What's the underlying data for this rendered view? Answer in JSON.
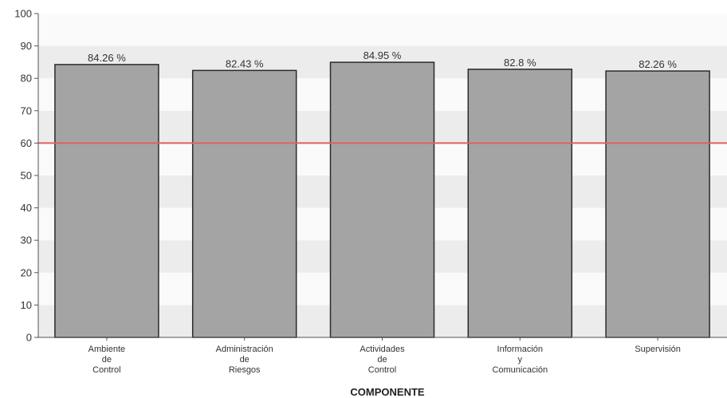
{
  "chart_data": {
    "type": "bar",
    "categories": [
      [
        "Ambiente",
        "de",
        "Control"
      ],
      [
        "Administración",
        "de",
        "Riesgos"
      ],
      [
        "Actividades",
        "de",
        "Control"
      ],
      [
        "Información",
        "y",
        "Comunicación"
      ],
      [
        "Supervisión"
      ]
    ],
    "values": [
      84.26,
      82.43,
      84.95,
      82.8,
      82.26
    ],
    "data_labels": [
      "84.26 %",
      "82.43 %",
      "84.95 %",
      "82.8 %",
      "82.26 %"
    ],
    "xlabel": "COMPONENTE",
    "ylabel": "",
    "ylim": [
      0,
      100
    ],
    "yticks": [
      0,
      10,
      20,
      30,
      40,
      50,
      60,
      70,
      80,
      90,
      100
    ],
    "reference_line": 60,
    "grid": "horizontal alternating bands",
    "colors": {
      "bar_fill": "#a4a4a4",
      "bar_stroke": "#2a2a2a",
      "reference_line": "#e06060",
      "band_dark": "#ececec",
      "band_light": "#fafafa",
      "axis": "#555555"
    }
  }
}
